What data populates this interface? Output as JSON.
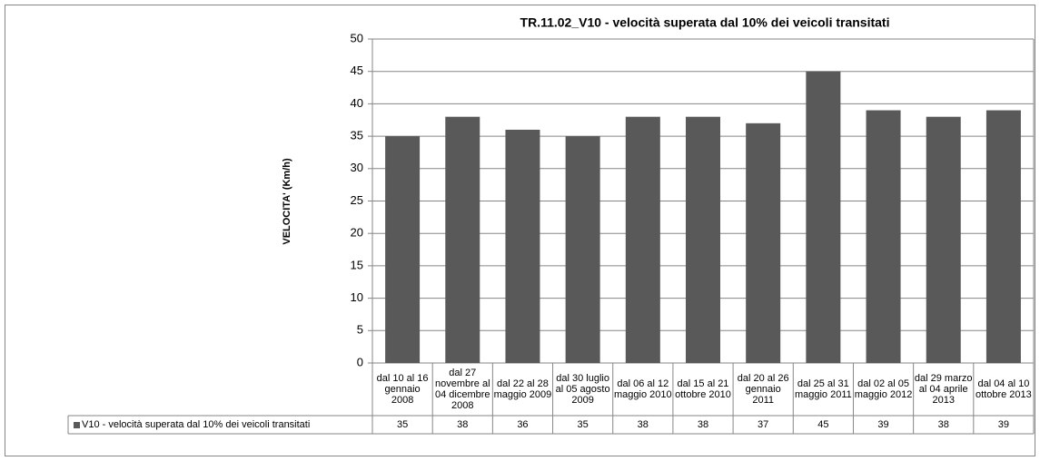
{
  "chart_data": {
    "type": "bar",
    "title": "TR.11.02_V10 - velocità superata dal 10% dei veicoli transitati",
    "y_label": "VELOCITA' (Km/h)",
    "categories": [
      "dal 10 al 16 gennaio 2008",
      "dal 27 novembre al 04 dicembre 2008",
      "dal 22 al 28 maggio 2009",
      "dal 30 luglio al 05 agosto 2009",
      "dal 06 al 12 maggio 2010",
      "dal 15 al 21 ottobre 2010",
      "dal 20 al 26 gennaio 2011",
      "dal 25 al 31 maggio 2011",
      "dal 02 al 05 maggio 2012",
      "dal 29 marzo al 04 aprile 2013",
      "dal 04 al 10 ottobre 2013"
    ],
    "series": [
      {
        "name": "V10 - velocità superata dal 10% dei veicoli transitati",
        "color": "#595959",
        "values": [
          35,
          38,
          36,
          35,
          38,
          38,
          37,
          45,
          39,
          38,
          39
        ]
      }
    ],
    "ylim": [
      0,
      50
    ],
    "yticks": [
      0,
      5,
      10,
      15,
      20,
      25,
      30,
      35,
      40,
      45,
      50
    ],
    "grid": true
  }
}
